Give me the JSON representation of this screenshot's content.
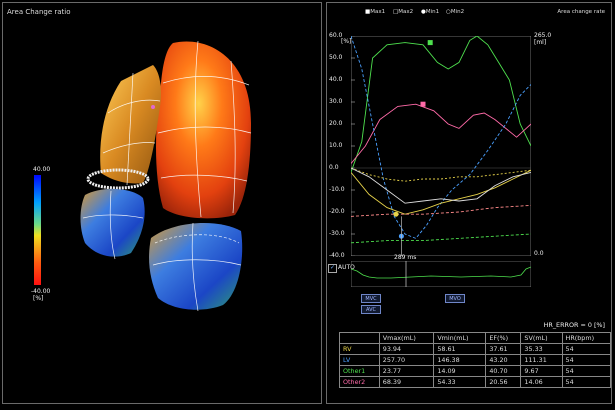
{
  "left_panel": {
    "title": "Area Change ratio",
    "colorbar": {
      "top_label": "40.00",
      "bottom_label": "-40.00",
      "unit": "[%]"
    }
  },
  "right_panel": {
    "title_right": "Area change rate",
    "legend": {
      "max1": "Max1",
      "max2": "Max2",
      "min1": "Min1",
      "min2": "Min2"
    },
    "left_axis": {
      "unit": "[%]",
      "ticks": [
        "60.0",
        "50.0",
        "40.0",
        "30.0",
        "20.0",
        "10.0",
        "0.0",
        "-10.0",
        "-20.0",
        "-30.0",
        "-40.0"
      ]
    },
    "right_axis": {
      "top": "265.0",
      "unit": "[ml]",
      "bottom": "0.0"
    },
    "auto_label": "AUTO",
    "time_readout": "289 ms",
    "buttons": {
      "mvc": "MVC",
      "avc": "AVC",
      "mvo": "MVO"
    },
    "hr_error": "HR_ERROR = 0 [%]"
  },
  "table": {
    "headers": [
      "",
      "Vmax(mL)",
      "Vmin(mL)",
      "EF(%)",
      "SV(mL)",
      "HR(bpm)"
    ],
    "rows": [
      {
        "name": "RV",
        "color": "#e6d24a",
        "values": [
          "93.94",
          "58.61",
          "37.61",
          "35.33",
          "54"
        ]
      },
      {
        "name": "LV",
        "color": "#4aa0ff",
        "values": [
          "257.70",
          "146.38",
          "43.20",
          "111.31",
          "54"
        ]
      },
      {
        "name": "Other1",
        "color": "#4ee04e",
        "values": [
          "23.77",
          "14.09",
          "40.70",
          "9.67",
          "54"
        ]
      },
      {
        "name": "Other2",
        "color": "#ff6aa8",
        "values": [
          "68.39",
          "54.33",
          "20.56",
          "14.06",
          "54"
        ]
      }
    ]
  },
  "chart_data": {
    "type": "line",
    "title": "Area change rate",
    "ylabel": "[%]",
    "ylim": [
      -40,
      60
    ],
    "y2label": "[ml]",
    "y2lim": [
      0,
      265
    ],
    "series": [
      {
        "color": "#4ee04e",
        "points": [
          [
            0,
            -2
          ],
          [
            0.06,
            12
          ],
          [
            0.12,
            50
          ],
          [
            0.2,
            56
          ],
          [
            0.3,
            57
          ],
          [
            0.4,
            56
          ],
          [
            0.48,
            48
          ],
          [
            0.54,
            45
          ],
          [
            0.6,
            48
          ],
          [
            0.66,
            58
          ],
          [
            0.7,
            60
          ],
          [
            0.76,
            56
          ],
          [
            0.82,
            48
          ],
          [
            0.88,
            40
          ],
          [
            0.94,
            20
          ],
          [
            1,
            10
          ]
        ]
      },
      {
        "color": "#ff6aa8",
        "points": [
          [
            0,
            2
          ],
          [
            0.08,
            10
          ],
          [
            0.16,
            22
          ],
          [
            0.26,
            28
          ],
          [
            0.36,
            29
          ],
          [
            0.46,
            26
          ],
          [
            0.54,
            20
          ],
          [
            0.6,
            18
          ],
          [
            0.68,
            24
          ],
          [
            0.74,
            25
          ],
          [
            0.8,
            22
          ],
          [
            0.86,
            18
          ],
          [
            0.92,
            14
          ],
          [
            1,
            20
          ]
        ]
      },
      {
        "color": "#4aa0ff",
        "points": [
          [
            0,
            60
          ],
          [
            0.06,
            45
          ],
          [
            0.12,
            20
          ],
          [
            0.18,
            -5
          ],
          [
            0.24,
            -22
          ],
          [
            0.3,
            -30
          ],
          [
            0.36,
            -32
          ],
          [
            0.42,
            -26
          ],
          [
            0.48,
            -18
          ],
          [
            0.56,
            -10
          ],
          [
            0.66,
            -3
          ],
          [
            0.76,
            8
          ],
          [
            0.86,
            20
          ],
          [
            0.94,
            33
          ],
          [
            1,
            38
          ]
        ]
      },
      {
        "color": "#e6d24a",
        "points": [
          [
            0,
            -2
          ],
          [
            0.1,
            -12
          ],
          [
            0.2,
            -18
          ],
          [
            0.3,
            -21
          ],
          [
            0.4,
            -19
          ],
          [
            0.5,
            -16
          ],
          [
            0.6,
            -14
          ],
          [
            0.7,
            -12
          ],
          [
            0.8,
            -9
          ],
          [
            0.9,
            -5
          ],
          [
            1,
            -1
          ]
        ]
      },
      {
        "color": "#e6d24a",
        "points": [
          [
            0,
            0
          ],
          [
            0.1,
            -3
          ],
          [
            0.2,
            -5
          ],
          [
            0.3,
            -6
          ],
          [
            0.4,
            -5
          ],
          [
            0.5,
            -5
          ],
          [
            0.6,
            -4
          ],
          [
            0.7,
            -4
          ],
          [
            0.8,
            -3
          ],
          [
            0.9,
            -2
          ],
          [
            1,
            -1
          ]
        ]
      },
      {
        "color": "#dddddd",
        "points": [
          [
            0,
            0
          ],
          [
            0.1,
            -4
          ],
          [
            0.2,
            -10
          ],
          [
            0.3,
            -16
          ],
          [
            0.4,
            -15
          ],
          [
            0.5,
            -14
          ],
          [
            0.6,
            -15
          ],
          [
            0.7,
            -14
          ],
          [
            0.8,
            -8
          ],
          [
            0.9,
            -4
          ],
          [
            1,
            -2
          ]
        ]
      },
      {
        "color": "#ff8a8a",
        "points": [
          [
            0,
            -22
          ],
          [
            0.2,
            -21
          ],
          [
            0.4,
            -21
          ],
          [
            0.6,
            -20
          ],
          [
            0.8,
            -18
          ],
          [
            1,
            -17
          ]
        ]
      },
      {
        "color": "#4ee04e",
        "points": [
          [
            0,
            -34
          ],
          [
            0.2,
            -33
          ],
          [
            0.4,
            -33
          ],
          [
            0.6,
            -32
          ],
          [
            0.8,
            -31
          ],
          [
            1,
            -30
          ]
        ]
      }
    ],
    "markers": [
      {
        "x": 0.44,
        "y": 57,
        "color": "#4ee04e",
        "shape": "square"
      },
      {
        "x": 0.4,
        "y": 29,
        "color": "#ff6aa8",
        "shape": "square"
      },
      {
        "x": 0.28,
        "y": -31,
        "color": "#4aa0ff",
        "shape": "circle"
      },
      {
        "x": 0.25,
        "y": -21,
        "color": "#e6d24a",
        "shape": "circle"
      }
    ],
    "cursor_x": 0.28
  }
}
